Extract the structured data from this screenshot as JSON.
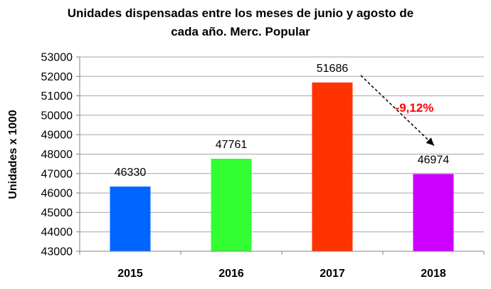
{
  "chart_data": {
    "type": "bar",
    "title_lines": [
      "Unidades dispensadas entre los meses de junio y agosto de",
      "cada año. Merc. Popular"
    ],
    "ylabel": "Unidades x 1000",
    "xlabel": "",
    "categories": [
      "2015",
      "2016",
      "2017",
      "2018"
    ],
    "values": [
      46330,
      47761,
      51686,
      46974
    ],
    "bar_colors": [
      "#0066ff",
      "#33ff33",
      "#ff3300",
      "#cc00ff"
    ],
    "ylim": [
      43000,
      53000
    ],
    "yticks": [
      43000,
      44000,
      45000,
      46000,
      47000,
      48000,
      49000,
      50000,
      51000,
      52000,
      53000
    ],
    "grid": true,
    "annotation": {
      "text": "-9,12%",
      "color": "#ff0000",
      "from_category": "2017",
      "to_category": "2018",
      "arrow_style": "dashed"
    }
  }
}
